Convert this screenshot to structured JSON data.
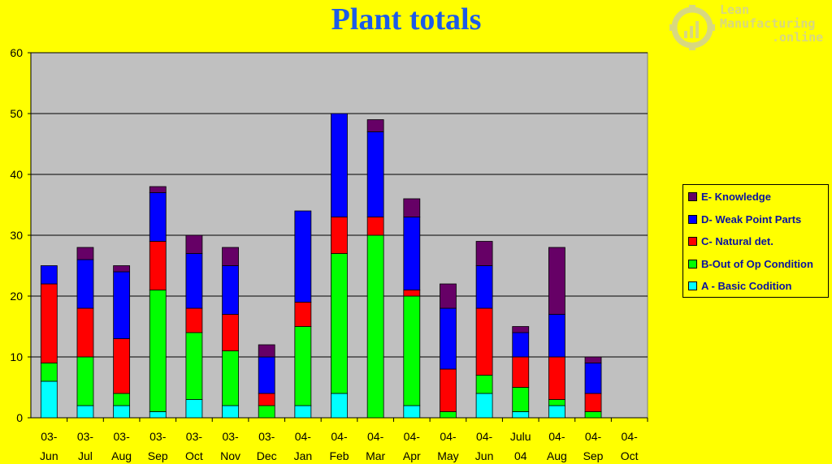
{
  "title": "Plant totals",
  "logo": {
    "line1": "Lean",
    "line2": "Manufacturing",
    "line3": ".online"
  },
  "colors": {
    "background": "#FFFF00",
    "plot_area": "#C0C0C0",
    "title": "#1C5BE8",
    "A": "#00FFFF",
    "B": "#00FF00",
    "C": "#FF0000",
    "D": "#0000FF",
    "E": "#660066"
  },
  "legend": [
    {
      "label": "E- Knowledge",
      "key": "E"
    },
    {
      "label": "D- Weak Point Parts",
      "key": "D"
    },
    {
      "label": "C- Natural det.",
      "key": "C"
    },
    {
      "label": "B-Out of Op Condition",
      "key": "B"
    },
    {
      "label": "A - Basic Codition",
      "key": "A"
    }
  ],
  "chart_data": {
    "type": "bar",
    "stacked": true,
    "title": "Plant totals",
    "categories": [
      [
        "03-",
        "Jun"
      ],
      [
        "03-",
        "Jul"
      ],
      [
        "03-",
        "Aug"
      ],
      [
        "03-",
        "Sep"
      ],
      [
        "03-",
        "Oct"
      ],
      [
        "03-",
        "Nov"
      ],
      [
        "03-",
        "Dec"
      ],
      [
        "04-",
        "Jan"
      ],
      [
        "04-",
        "Feb"
      ],
      [
        "04-",
        "Mar"
      ],
      [
        "04-",
        "Apr"
      ],
      [
        "04-",
        "May"
      ],
      [
        "04-",
        "Jun"
      ],
      [
        "Julu",
        "04"
      ],
      [
        "04-",
        "Aug"
      ],
      [
        "04-",
        "Sep"
      ],
      [
        "04-",
        "Oct"
      ]
    ],
    "ylim": [
      0,
      60
    ],
    "yticks": [
      0,
      10,
      20,
      30,
      40,
      50,
      60
    ],
    "grid": true,
    "legend_position": "right",
    "series": [
      {
        "name": "A - Basic Codition",
        "key": "A",
        "values": [
          6,
          2,
          2,
          1,
          3,
          2,
          0,
          2,
          4,
          0,
          2,
          0,
          4,
          1,
          2,
          0,
          0
        ]
      },
      {
        "name": "B-Out of Op Condition",
        "key": "B",
        "values": [
          3,
          8,
          2,
          20,
          11,
          9,
          2,
          13,
          23,
          30,
          18,
          1,
          3,
          4,
          1,
          1,
          0
        ]
      },
      {
        "name": "C- Natural det.",
        "key": "C",
        "values": [
          13,
          8,
          9,
          8,
          4,
          6,
          2,
          4,
          6,
          3,
          1,
          7,
          11,
          5,
          7,
          3,
          0
        ]
      },
      {
        "name": "D- Weak Point Parts",
        "key": "D",
        "values": [
          3,
          8,
          11,
          8,
          9,
          8,
          6,
          15,
          17,
          14,
          12,
          10,
          7,
          4,
          7,
          5,
          0
        ]
      },
      {
        "name": "E- Knowledge",
        "key": "E",
        "values": [
          0,
          2,
          1,
          1,
          3,
          3,
          2,
          0,
          0,
          2,
          3,
          4,
          4,
          1,
          11,
          1,
          0
        ]
      }
    ]
  }
}
